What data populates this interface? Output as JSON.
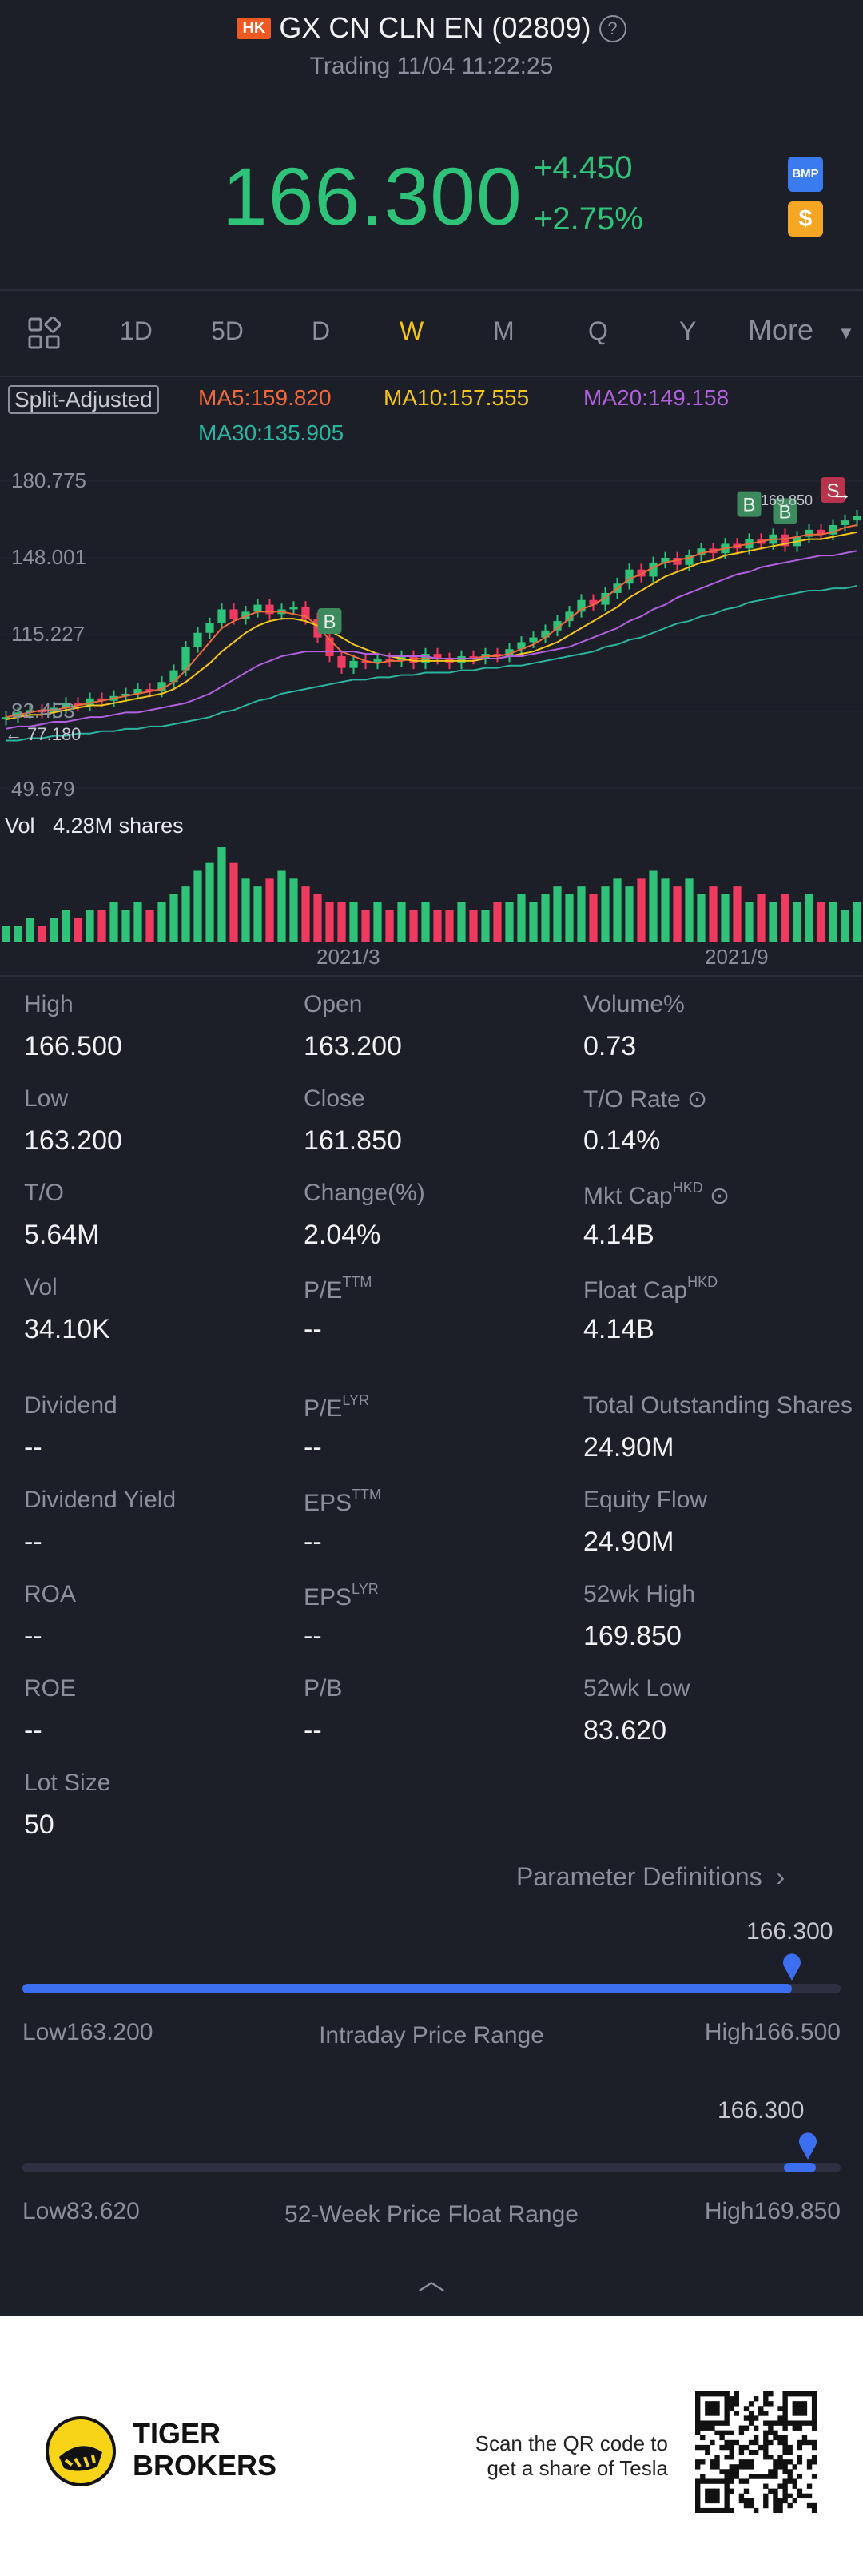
{
  "header": {
    "market_badge": "HK",
    "title": "GX CN CLN EN (02809)",
    "help_icon": "question-icon",
    "status": "Trading 11/04 11:22:25"
  },
  "quote": {
    "price": "166.300",
    "change": "+4.450",
    "change_pct": "+2.75%",
    "badge_bmp": "BMP",
    "badge_dollar": "$"
  },
  "tabs": {
    "items": [
      "1D",
      "5D",
      "D",
      "W",
      "M",
      "Q",
      "Y"
    ],
    "active": "W",
    "more": "More"
  },
  "ma": {
    "adjust": "Split-Adjusted",
    "ma5": "MA5:159.820",
    "ma10": "MA10:157.555",
    "ma20": "MA20:149.158",
    "ma30": "MA30:135.905"
  },
  "chart_data": {
    "type": "candlestick",
    "title": "",
    "y_ticks": [
      "180.775",
      "148.001",
      "115.227",
      "82.453",
      "49.679"
    ],
    "ylim": [
      49.679,
      180.775
    ],
    "low_label": "77.180",
    "high_label": "169.850",
    "x_ticks": [
      "2021/3",
      "2021/9"
    ],
    "markers": [
      "B",
      "B",
      "B",
      "S"
    ],
    "closes": [
      80,
      82,
      83,
      82,
      84,
      86,
      85,
      88,
      87,
      89,
      90,
      92,
      91,
      95,
      100,
      110,
      116,
      120,
      126,
      122,
      125,
      128,
      124,
      126,
      127,
      122,
      114,
      106,
      101,
      104,
      103,
      105,
      104,
      106,
      103,
      107,
      105,
      103,
      106,
      105,
      107,
      106,
      109,
      112,
      114,
      117,
      121,
      125,
      130,
      128,
      133,
      137,
      143,
      140,
      146,
      148,
      145,
      149,
      152,
      150,
      154,
      152,
      156,
      154,
      158,
      153,
      157,
      160,
      158,
      162,
      164,
      166
    ],
    "ma_series": {
      "MA5": [
        80,
        81,
        82,
        83,
        83,
        84,
        85,
        86,
        87,
        88,
        89,
        90,
        91,
        92,
        95,
        100,
        106,
        112,
        118,
        121,
        123,
        125,
        125,
        125,
        124,
        123,
        119,
        113,
        108,
        106,
        104,
        103,
        104,
        104,
        105,
        105,
        105,
        105,
        105,
        105,
        106,
        106,
        107,
        109,
        111,
        114,
        118,
        122,
        126,
        128,
        131,
        135,
        139,
        141,
        144,
        146,
        147,
        148,
        150,
        151,
        152,
        153,
        154,
        155,
        156,
        156,
        157,
        158,
        158,
        159,
        161,
        162
      ],
      "MA10": [
        79,
        80,
        81,
        81,
        82,
        83,
        84,
        85,
        85,
        86,
        87,
        88,
        89,
        90,
        92,
        95,
        99,
        103,
        108,
        112,
        116,
        119,
        121,
        122,
        122,
        121,
        119,
        117,
        114,
        111,
        109,
        107,
        106,
        105,
        104,
        104,
        104,
        104,
        104,
        104,
        105,
        105,
        106,
        107,
        108,
        110,
        112,
        115,
        118,
        121,
        124,
        127,
        131,
        134,
        137,
        140,
        142,
        144,
        146,
        147,
        149,
        150,
        151,
        152,
        153,
        154,
        155,
        156,
        156,
        157,
        158,
        159
      ],
      "MA20": [
        75,
        76,
        76,
        77,
        78,
        78,
        79,
        80,
        80,
        81,
        82,
        82,
        83,
        84,
        85,
        86,
        88,
        90,
        93,
        96,
        99,
        102,
        104,
        106,
        107,
        108,
        108,
        108,
        108,
        108,
        107,
        107,
        106,
        106,
        106,
        106,
        105,
        105,
        105,
        105,
        105,
        105,
        106,
        106,
        107,
        108,
        109,
        110,
        112,
        114,
        116,
        118,
        121,
        123,
        126,
        128,
        131,
        133,
        135,
        137,
        139,
        141,
        142,
        144,
        145,
        146,
        147,
        148,
        149,
        149,
        150,
        151
      ],
      "MA30": [
        70,
        70,
        71,
        71,
        72,
        72,
        73,
        73,
        74,
        74,
        75,
        75,
        76,
        76,
        77,
        78,
        79,
        80,
        82,
        83,
        85,
        87,
        88,
        90,
        91,
        92,
        93,
        94,
        95,
        96,
        96,
        97,
        97,
        98,
        98,
        99,
        99,
        99,
        100,
        100,
        101,
        101,
        102,
        102,
        103,
        104,
        105,
        106,
        107,
        108,
        110,
        111,
        113,
        114,
        116,
        118,
        120,
        121,
        123,
        124,
        126,
        127,
        129,
        130,
        131,
        132,
        133,
        134,
        134,
        135,
        135,
        136
      ]
    },
    "volume_label": "Vol",
    "volume_value": "4.28M shares",
    "volume": [
      2,
      2,
      3,
      2,
      3,
      4,
      3,
      4,
      4,
      5,
      4,
      5,
      4,
      5,
      6,
      7,
      9,
      10,
      12,
      10,
      8,
      7,
      8,
      9,
      8,
      7,
      6,
      5,
      5,
      5,
      4,
      5,
      4,
      5,
      4,
      5,
      4,
      4,
      5,
      4,
      4,
      5,
      5,
      6,
      5,
      6,
      7,
      6,
      7,
      6,
      7,
      8,
      7,
      8,
      9,
      8,
      7,
      8,
      6,
      7,
      6,
      7,
      5,
      6,
      5,
      6,
      5,
      6,
      5,
      5,
      4,
      5
    ]
  },
  "stats": {
    "col1": [
      {
        "label": "High",
        "value": "166.500"
      },
      {
        "label": "Low",
        "value": "163.200"
      },
      {
        "label": "T/O",
        "value": "5.64M"
      },
      {
        "label": "Vol",
        "value": "34.10K"
      },
      {
        "label": "Dividend",
        "value": "--"
      },
      {
        "label": "Dividend Yield",
        "value": "--"
      },
      {
        "label": "ROA",
        "value": "--"
      },
      {
        "label": "ROE",
        "value": "--"
      },
      {
        "label": "Lot Size",
        "value": "50"
      }
    ],
    "col2": [
      {
        "label": "Open",
        "value": "163.200"
      },
      {
        "label": "Close",
        "value": "161.850"
      },
      {
        "label": "Change(%)",
        "value": "2.04%"
      },
      {
        "label": "P/E",
        "sup": "TTM",
        "value": "--"
      },
      {
        "label": "P/E",
        "sup": "LYR",
        "value": "--"
      },
      {
        "label": "EPS",
        "sup": "TTM",
        "value": "--"
      },
      {
        "label": "EPS",
        "sup": "LYR",
        "value": "--"
      },
      {
        "label": "P/B",
        "value": "--"
      }
    ],
    "col3": [
      {
        "label": "Volume%",
        "value": "0.73"
      },
      {
        "label": "T/O Rate",
        "value": "0.14%"
      },
      {
        "label": "Mkt Cap",
        "sup": "HKD",
        "value": "4.14B"
      },
      {
        "label": "Float Cap",
        "sup": "HKD",
        "value": "4.14B"
      },
      {
        "label": "Total Outstanding Shares",
        "value": "24.90M"
      },
      {
        "label": "Equity Flow",
        "value": "24.90M"
      },
      {
        "label": "52wk High",
        "value": "169.850"
      },
      {
        "label": "52wk Low",
        "value": "83.620"
      }
    ]
  },
  "param_link": "Parameter Definitions",
  "intraday": {
    "current": "166.300",
    "low": "Low163.200",
    "high": "High166.500",
    "label": "Intraday Price Range",
    "fraction": 0.94
  },
  "week52": {
    "current": "166.300",
    "low": "Low83.620",
    "high": "High169.850",
    "label": "52-Week Price Float Range",
    "fraction": 0.96
  },
  "footer": {
    "brand1": "TIGER",
    "brand2": "BROKERS",
    "qr_line1": "Scan the QR code to",
    "qr_line2": "get a share of Tesla"
  },
  "colors": {
    "up": "#2fc37a",
    "down": "#f03a5f",
    "ma5": "#ef6a3a",
    "ma10": "#f5c518",
    "ma20": "#b25fe0",
    "ma30": "#2bb5a0",
    "accent": "#3b6ff0"
  }
}
